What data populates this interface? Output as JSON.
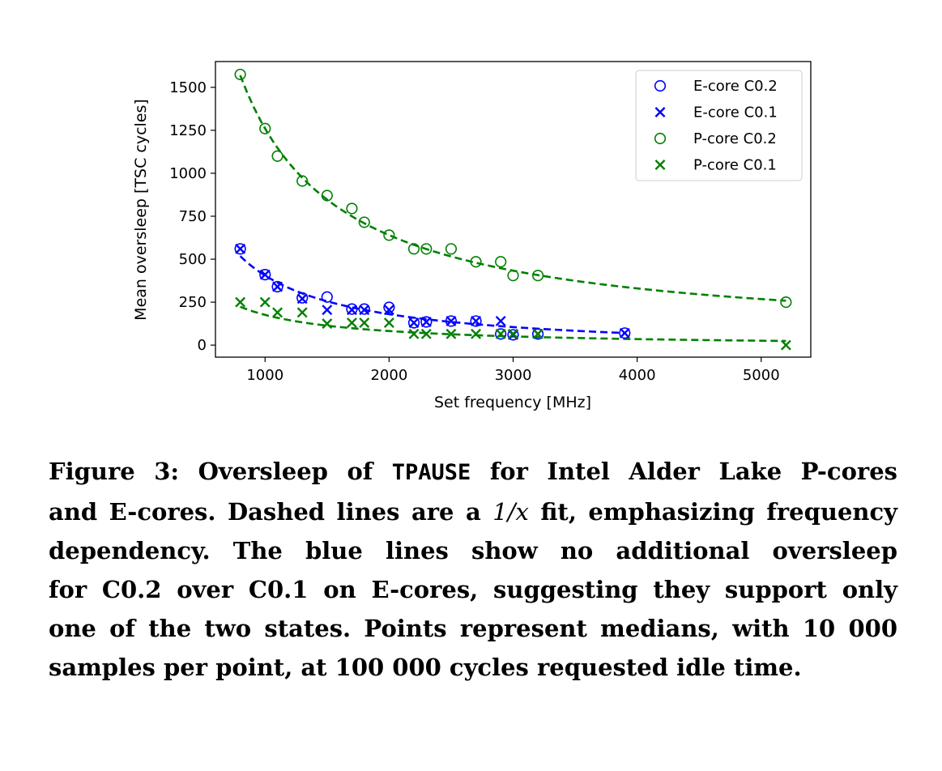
{
  "chart_data": {
    "type": "scatter",
    "xlabel": "Set frequency [MHz]",
    "ylabel": "Mean oversleep [TSC cycles]",
    "xlim": [
      600,
      5400
    ],
    "ylim": [
      -70,
      1650
    ],
    "xticks": [
      1000,
      2000,
      3000,
      4000,
      5000
    ],
    "yticks": [
      0,
      250,
      500,
      750,
      1000,
      1250,
      1500
    ],
    "legend_position": "top-right",
    "grid": false,
    "series": [
      {
        "name": "E-core C0.2",
        "marker": "circle",
        "color": "#0000ff",
        "x": [
          800,
          1000,
          1100,
          1300,
          1500,
          1700,
          1800,
          2000,
          2200,
          2300,
          2500,
          2700,
          2900,
          3000,
          3200,
          3900
        ],
        "y": [
          560,
          410,
          340,
          275,
          280,
          210,
          210,
          220,
          130,
          135,
          140,
          140,
          65,
          60,
          65,
          70
        ]
      },
      {
        "name": "E-core C0.1",
        "marker": "x",
        "color": "#0000ff",
        "x": [
          800,
          1000,
          1100,
          1300,
          1500,
          1700,
          1800,
          2000,
          2200,
          2300,
          2500,
          2700,
          2900,
          3000,
          3200,
          3900
        ],
        "y": [
          560,
          410,
          340,
          270,
          205,
          205,
          205,
          205,
          130,
          135,
          140,
          140,
          140,
          60,
          65,
          70
        ]
      },
      {
        "name": "P-core C0.2",
        "marker": "circle",
        "color": "#008000",
        "x": [
          800,
          1000,
          1100,
          1300,
          1500,
          1700,
          1800,
          2000,
          2200,
          2300,
          2500,
          2700,
          2900,
          3000,
          3200,
          5200
        ],
        "y": [
          1575,
          1260,
          1100,
          955,
          870,
          795,
          715,
          640,
          560,
          560,
          560,
          485,
          485,
          405,
          405,
          250
        ]
      },
      {
        "name": "P-core C0.1",
        "marker": "x",
        "color": "#008000",
        "x": [
          800,
          1000,
          1100,
          1300,
          1500,
          1700,
          1800,
          2000,
          2200,
          2300,
          2500,
          2700,
          2900,
          3000,
          3200,
          5200
        ],
        "y": [
          250,
          250,
          190,
          190,
          125,
          130,
          130,
          130,
          65,
          65,
          65,
          65,
          65,
          65,
          65,
          0
        ]
      }
    ],
    "fits": [
      {
        "color": "#0000ff",
        "x_range": [
          800,
          3900
        ],
        "a": 450000,
        "b": -45
      },
      {
        "color": "#008000",
        "x_range": [
          800,
          5200
        ],
        "a": 1240000,
        "b": 20
      },
      {
        "color": "#008000",
        "x_range": [
          800,
          5200
        ],
        "a": 188000,
        "b": -12
      }
    ]
  },
  "caption": {
    "line1_prefix": "Figure 3:  Oversleep of ",
    "line1_code": "TPAUSE",
    "line1_suffix": " for Intel Alder Lake P-cores",
    "line2_prefix": "and E-cores. Dashed lines are a ",
    "line2_math": "1/x",
    "line2_suffix": " fit, emphasizing frequency",
    "line3": "dependency. The blue lines show no additional oversleep",
    "line4": "for C0.2 over C0.1 on E-cores, suggesting they support only",
    "line5": "one of the two states. Points represent medians, with 10 000",
    "line6": "samples per point, at 100 000 cycles requested idle time."
  }
}
